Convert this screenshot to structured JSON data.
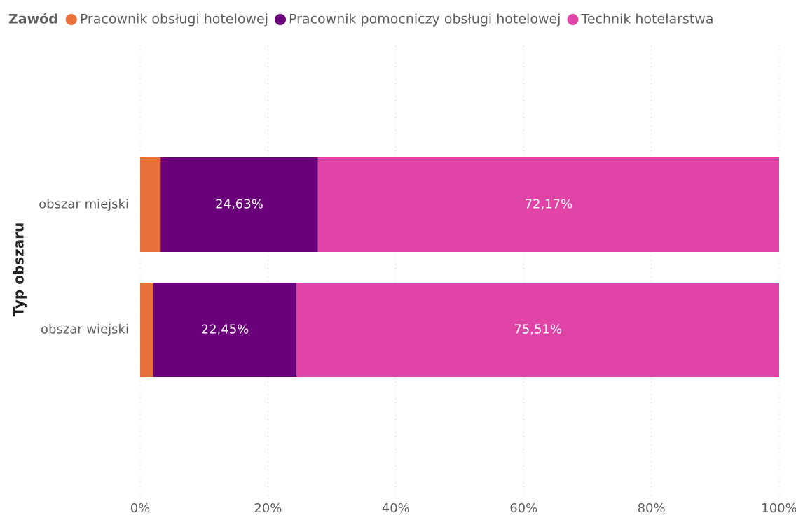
{
  "chart_data": {
    "type": "stacked_bar_horizontal",
    "legend_title": "Zawód",
    "y_label": "Typ obszaru",
    "categories": [
      "obszar miejski",
      "obszar wiejski"
    ],
    "series": [
      {
        "name": "Pracownik obsługi hotelowej",
        "color": "#e8703a",
        "values": [
          3.2,
          2.04
        ],
        "value_labels": [
          null,
          null
        ]
      },
      {
        "name": "Pracownik pomocniczy obsługi hotelowej",
        "color": "#6b007b",
        "values": [
          24.63,
          22.45
        ],
        "value_labels": [
          "24,63%",
          "22,45%"
        ]
      },
      {
        "name": "Technik hotelarstwa",
        "color": "#e044a7",
        "values": [
          72.17,
          75.51
        ],
        "value_labels": [
          "72,17%",
          "75,51%"
        ]
      }
    ],
    "xlim": [
      0,
      100
    ],
    "xticks": [
      {
        "value": 0,
        "label": "0%"
      },
      {
        "value": 20,
        "label": "20%"
      },
      {
        "value": 40,
        "label": "40%"
      },
      {
        "value": 60,
        "label": "60%"
      },
      {
        "value": 80,
        "label": "80%"
      },
      {
        "value": 100,
        "label": "100%"
      }
    ],
    "grid": true,
    "legend": "top-left"
  }
}
